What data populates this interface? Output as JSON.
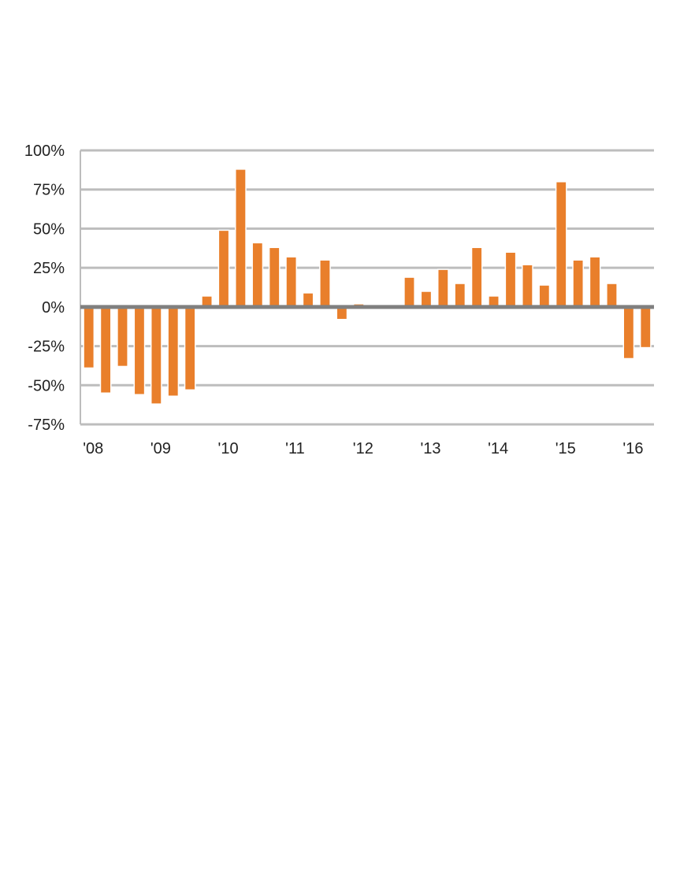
{
  "chart_data": {
    "type": "bar",
    "title": "",
    "xlabel": "",
    "ylabel": "",
    "ylim": [
      -75,
      100
    ],
    "yticks": [
      100,
      75,
      50,
      25,
      0,
      -25,
      -50,
      -75
    ],
    "ytick_labels": [
      "100%",
      "75%",
      "50%",
      "25%",
      "0%",
      "-25%",
      "-50%",
      "-75%"
    ],
    "xtick_labels": [
      "'08",
      "'09",
      "'10",
      "'11",
      "'12",
      "'13",
      "'14",
      "'15",
      "'16"
    ],
    "categories": [
      "2008 Q1",
      "2008 Q2",
      "2008 Q3",
      "2008 Q4",
      "2009 Q1",
      "2009 Q2",
      "2009 Q3",
      "2009 Q4",
      "2010 Q1",
      "2010 Q2",
      "2010 Q3",
      "2010 Q4",
      "2011 Q1",
      "2011 Q2",
      "2011 Q3",
      "2011 Q4",
      "2012 Q1",
      "2012 Q2",
      "2012 Q3",
      "2012 Q4",
      "2013 Q1",
      "2013 Q2",
      "2013 Q3",
      "2013 Q4",
      "2014 Q1",
      "2014 Q2",
      "2014 Q3",
      "2014 Q4",
      "2015 Q1",
      "2015 Q2",
      "2015 Q3",
      "2015 Q4",
      "2016 Q1",
      "2016 Q2"
    ],
    "values": [
      -39,
      -55,
      -38,
      -56,
      -62,
      -57,
      -53,
      7,
      49,
      88,
      41,
      38,
      32,
      9,
      30,
      -8,
      2,
      0,
      0,
      19,
      10,
      24,
      15,
      38,
      7,
      35,
      27,
      14,
      80,
      30,
      32,
      15,
      -33,
      -26
    ],
    "grid": true,
    "colors": {
      "bar": "#E97F2B",
      "grid": "#BDBDBD",
      "zero_line": "#808080",
      "text": "#222222"
    }
  }
}
